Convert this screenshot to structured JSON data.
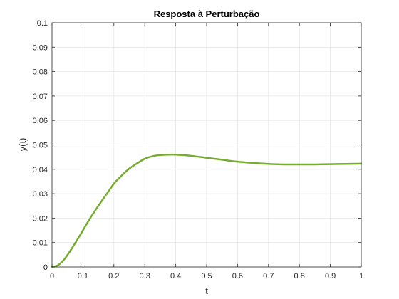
{
  "chart_data": {
    "type": "line",
    "title": "Resposta à Perturbação",
    "xlabel": "t",
    "ylabel": "y(t)",
    "xlim": [
      0,
      1
    ],
    "ylim": [
      0,
      0.1
    ],
    "xticks": [
      "0",
      "0.1",
      "0.2",
      "0.3",
      "0.4",
      "0.5",
      "0.6",
      "0.7",
      "0.8",
      "0.9",
      "1"
    ],
    "yticks": [
      "0",
      "0.01",
      "0.02",
      "0.03",
      "0.04",
      "0.05",
      "0.06",
      "0.07",
      "0.08",
      "0.09",
      "0.1"
    ],
    "grid": true,
    "colors": {
      "line": "#77AC30",
      "grid": "#e6e6e6",
      "axes": "#262626"
    },
    "series": [
      {
        "x": [
          0,
          0.02,
          0.04,
          0.06,
          0.08,
          0.1,
          0.12,
          0.14,
          0.16,
          0.18,
          0.2,
          0.22,
          0.25,
          0.28,
          0.3,
          0.33,
          0.36,
          0.4,
          0.45,
          0.5,
          0.55,
          0.6,
          0.65,
          0.7,
          0.75,
          0.8,
          0.85,
          0.9,
          0.95,
          1.0
        ],
        "y": [
          0,
          0.0008,
          0.0032,
          0.0068,
          0.0108,
          0.015,
          0.0193,
          0.0232,
          0.0269,
          0.0305,
          0.0341,
          0.0368,
          0.0403,
          0.0428,
          0.0443,
          0.0455,
          0.0459,
          0.046,
          0.0455,
          0.0447,
          0.0439,
          0.0431,
          0.0426,
          0.0422,
          0.042,
          0.042,
          0.042,
          0.0421,
          0.0422,
          0.0423
        ]
      }
    ]
  }
}
